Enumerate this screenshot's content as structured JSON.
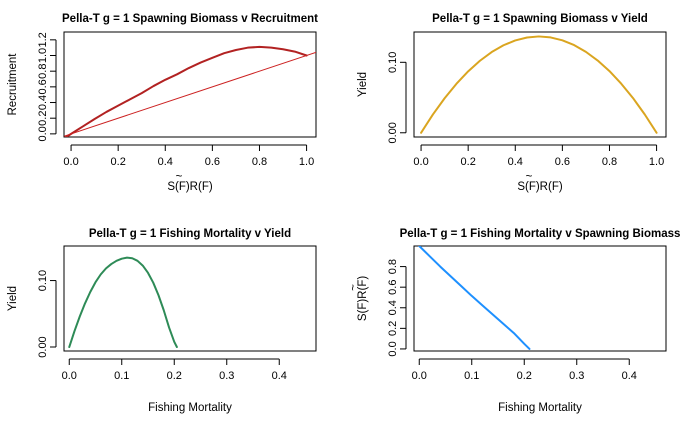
{
  "chart_data": [
    {
      "type": "line",
      "title": "Pella-T g = 1 Spawning Biomass v Recruitment",
      "xlabel": "S(F)R(F)",
      "xlabel_tilde": "~",
      "ylabel": "Recruitment",
      "xlim": [
        -0.03,
        1.04
      ],
      "ylim": [
        -0.04,
        1.3
      ],
      "xticks": [
        0.0,
        0.2,
        0.4,
        0.6,
        0.8,
        1.0
      ],
      "xtick_labels": [
        "0.0",
        "0.2",
        "0.4",
        "0.6",
        "0.8",
        "1.0"
      ],
      "yticks": [
        0.0,
        0.2,
        0.4,
        0.6,
        0.8,
        1.0,
        1.2
      ],
      "ytick_labels": [
        "0.0",
        "0.2",
        "0.4",
        "0.6",
        "0.8",
        "1.0",
        "1.2"
      ],
      "series": [
        {
          "color": "#b22222",
          "stroke_width": 2,
          "x": [
            -0.02,
            0.0,
            0.05,
            0.1,
            0.15,
            0.2,
            0.25,
            0.3,
            0.35,
            0.4,
            0.45,
            0.5,
            0.55,
            0.6,
            0.65,
            0.7,
            0.75,
            0.8,
            0.85,
            0.9,
            0.95,
            1.0
          ],
          "y": [
            -0.04,
            0.0,
            0.095,
            0.19,
            0.28,
            0.36,
            0.44,
            0.52,
            0.61,
            0.69,
            0.76,
            0.84,
            0.91,
            0.97,
            1.03,
            1.07,
            1.1,
            1.11,
            1.1,
            1.08,
            1.05,
            1.0
          ]
        },
        {
          "color": "#cc2222",
          "stroke_width": 1,
          "x": [
            -0.03,
            1.04
          ],
          "y": [
            -0.03,
            1.04
          ]
        }
      ]
    },
    {
      "type": "line",
      "title": "Pella-T g = 1 Spawning Biomass v Yield",
      "xlabel": "S(F)R(F)",
      "xlabel_tilde": "~",
      "ylabel": "Yield",
      "xlim": [
        -0.03,
        1.04
      ],
      "ylim": [
        -0.006,
        0.143
      ],
      "xticks": [
        0.0,
        0.2,
        0.4,
        0.6,
        0.8,
        1.0
      ],
      "xtick_labels": [
        "0.0",
        "0.2",
        "0.4",
        "0.6",
        "0.8",
        "1.0"
      ],
      "yticks": [
        0.0,
        0.1
      ],
      "ytick_labels": [
        "0.00",
        "0.10"
      ],
      "series": [
        {
          "color": "#daa520",
          "stroke_width": 2,
          "x": [
            0.0,
            0.05,
            0.1,
            0.15,
            0.2,
            0.25,
            0.3,
            0.35,
            0.4,
            0.45,
            0.5,
            0.55,
            0.6,
            0.65,
            0.7,
            0.75,
            0.8,
            0.85,
            0.9,
            0.95,
            1.0
          ],
          "y": [
            0.0,
            0.0258,
            0.049,
            0.0694,
            0.0872,
            0.1022,
            0.1146,
            0.1242,
            0.131,
            0.1352,
            0.1367,
            0.1353,
            0.1312,
            0.1244,
            0.1148,
            0.1025,
            0.0875,
            0.0696,
            0.0492,
            0.0259,
            0.0
          ]
        }
      ]
    },
    {
      "type": "line",
      "title": "Pella-T g = 1 Fishing Mortality v Yield",
      "xlabel": "Fishing Mortality",
      "ylabel": "Yield",
      "xlim": [
        -0.01,
        0.47
      ],
      "ylim": [
        -0.006,
        0.152
      ],
      "xticks": [
        0.0,
        0.1,
        0.2,
        0.3,
        0.4
      ],
      "xtick_labels": [
        "0.0",
        "0.1",
        "0.2",
        "0.3",
        "0.4"
      ],
      "yticks": [
        0.0,
        0.1
      ],
      "ytick_labels": [
        "0.00",
        "0.10"
      ],
      "series": [
        {
          "color": "#2e8b57",
          "stroke_width": 2,
          "x": [
            0.0,
            0.01,
            0.02,
            0.03,
            0.04,
            0.05,
            0.06,
            0.07,
            0.08,
            0.09,
            0.1,
            0.11,
            0.12,
            0.13,
            0.14,
            0.15,
            0.16,
            0.17,
            0.18,
            0.19,
            0.2,
            0.205
          ],
          "y": [
            0.0,
            0.024,
            0.0459,
            0.0656,
            0.0828,
            0.0975,
            0.1093,
            0.1183,
            0.1248,
            0.1297,
            0.1329,
            0.1345,
            0.1336,
            0.1297,
            0.1225,
            0.1116,
            0.0968,
            0.0779,
            0.0553,
            0.0296,
            0.0078,
            0.0
          ]
        }
      ]
    },
    {
      "type": "line",
      "title": "Pella-T g = 1 Fishing Mortality v Spawning Biomass",
      "xlabel": "Fishing Mortality",
      "ylabel": "S(F)R(F)",
      "ylabel_tilde": "~",
      "xlim": [
        -0.01,
        0.47
      ],
      "ylim": [
        -0.02,
        1.0
      ],
      "xticks": [
        0.0,
        0.1,
        0.2,
        0.3,
        0.4
      ],
      "xtick_labels": [
        "0.0",
        "0.1",
        "0.2",
        "0.3",
        "0.4"
      ],
      "yticks": [
        0.0,
        0.2,
        0.4,
        0.6,
        0.8
      ],
      "ytick_labels": [
        "0.0",
        "0.2",
        "0.4",
        "0.6",
        "0.8"
      ],
      "series": [
        {
          "color": "#1e90ff",
          "stroke_width": 2,
          "x": [
            0.0,
            0.02,
            0.04,
            0.06,
            0.08,
            0.1,
            0.12,
            0.14,
            0.16,
            0.18,
            0.2,
            0.21
          ],
          "y": [
            1.0,
            0.9,
            0.8,
            0.705,
            0.61,
            0.515,
            0.425,
            0.335,
            0.245,
            0.155,
            0.05,
            0.0
          ]
        }
      ]
    }
  ]
}
